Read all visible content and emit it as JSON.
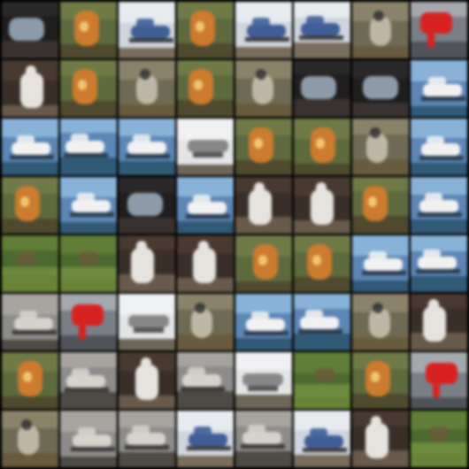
{
  "grid": {
    "rows": 8,
    "cols": 8,
    "background": "#000000"
  },
  "palettes": {
    "bird": {
      "name": "blurry-bird",
      "bg": "#6f6a52",
      "top": "#8a8268",
      "bottom": "#6a5b3c",
      "subject": "#c8c0ae",
      "accent": "#2a2a2a"
    },
    "dog": {
      "name": "orange-animal",
      "bg": "#5d6a3b",
      "top": "#6f7a45",
      "bottom": "#4f4a2e",
      "subject": "#d07a2a",
      "accent": "#2a241b"
    },
    "horse": {
      "name": "white-horse",
      "bg": "#3a2f28",
      "top": "#4a3a30",
      "bottom": "#6a5a4a",
      "subject": "#e6e2de",
      "accent": "#1a1512"
    },
    "car": {
      "name": "blue-car",
      "bg": "#cfd5de",
      "top": "#e7ebf0",
      "bottom": "#7a6d5a",
      "subject": "#3e5f9a",
      "accent": "#1b1b1b"
    },
    "ship": {
      "name": "ship-on-water",
      "bg": "#5b86b8",
      "top": "#86b2d9",
      "bottom": "#2f5a78",
      "subject": "#f1f1f1",
      "accent": "#1f2b36"
    },
    "red": {
      "name": "red-object",
      "bg": "#7a7f86",
      "top": "#a5a8ad",
      "bottom": "#50545a",
      "subject": "#e0201f",
      "accent": "#2a2a2a"
    },
    "truck": {
      "name": "grey-truck",
      "bg": "#8d8c8a",
      "top": "#a7a4a0",
      "bottom": "#4f4a44",
      "subject": "#d6d2cc",
      "accent": "#2a2624"
    },
    "green": {
      "name": "green-field",
      "bg": "#4a6b2c",
      "top": "#5f7f35",
      "bottom": "#3c5323",
      "subject": "#7b9a3e",
      "accent": "#2c3b1b"
    },
    "dark": {
      "name": "dark-scene",
      "bg": "#1f1d1e",
      "top": "#2b2829",
      "bottom": "#3a3231",
      "subject": "#9fb0c3",
      "accent": "#0d0c0c"
    },
    "sky": {
      "name": "white-horizon",
      "bg": "#e2e4e5",
      "top": "#f0f1f2",
      "bottom": "#6e6657",
      "subject": "#3a3a3a",
      "accent": "#1d1d1d"
    }
  },
  "tiles": [
    [
      "dark",
      "dog",
      "car",
      "dog",
      "car",
      "car",
      "bird",
      "red"
    ],
    [
      "horse",
      "dog",
      "bird",
      "dog",
      "bird",
      "dark",
      "dark",
      "ship"
    ],
    [
      "ship",
      "ship",
      "ship",
      "sky",
      "dog",
      "dog",
      "bird",
      "ship"
    ],
    [
      "dog",
      "ship",
      "dark",
      "ship",
      "horse",
      "horse",
      "dog",
      "ship"
    ],
    [
      "green",
      "green",
      "horse",
      "horse",
      "dog",
      "dog",
      "ship",
      "ship"
    ],
    [
      "truck",
      "red",
      "sky",
      "bird",
      "ship",
      "ship",
      "bird",
      "horse"
    ],
    [
      "dog",
      "truck",
      "horse",
      "truck",
      "sky",
      "green",
      "dog",
      "red"
    ],
    [
      "bird",
      "truck",
      "truck",
      "car",
      "truck",
      "car",
      "horse",
      "green"
    ]
  ]
}
